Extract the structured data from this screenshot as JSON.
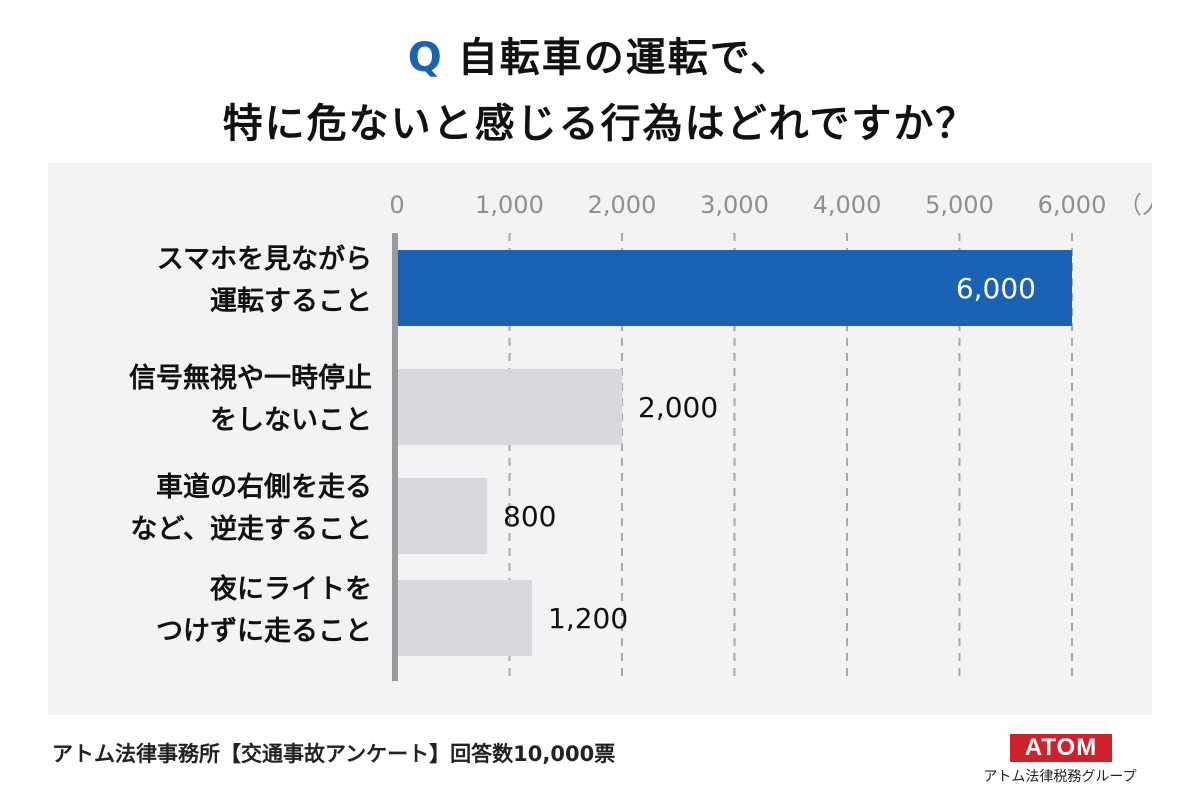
{
  "title": {
    "q_mark": "Q",
    "line1": "自転車の運転で、",
    "line2": "特に危ないと感じる行為はどれですか？"
  },
  "chart_data": {
    "type": "bar",
    "orientation": "horizontal",
    "categories": [
      [
        "スマホを見ながら",
        "運転すること"
      ],
      [
        "信号無視や一時停止",
        "をしないこと"
      ],
      [
        "車道の右側を走る",
        "など、逆走すること"
      ],
      [
        "夜にライトを",
        "つけずに走ること"
      ]
    ],
    "values": [
      6000,
      2000,
      800,
      1200
    ],
    "value_labels": [
      "6,000",
      "2,000",
      "800",
      "1,200"
    ],
    "xlim": [
      0,
      6000
    ],
    "xticks": [
      0,
      1000,
      2000,
      3000,
      4000,
      5000,
      6000
    ],
    "xtick_labels": [
      "0",
      "1,000",
      "2,000",
      "3,000",
      "4,000",
      "5,000",
      "6,000"
    ],
    "x_unit": "（人）",
    "grid": "dashed-vertical",
    "highlight_index": 0,
    "colors": {
      "highlight": "#1a62b3",
      "bar": "#d9d8dc",
      "axis": "#9a999c",
      "grid": "#a8a7aa",
      "tick": "#8f8e91"
    }
  },
  "footer": {
    "note": "アトム法律事務所【交通事故アンケート】回答数10,000票",
    "logo_text": "ATOM",
    "logo_sub": "アトム法律税務グループ"
  }
}
